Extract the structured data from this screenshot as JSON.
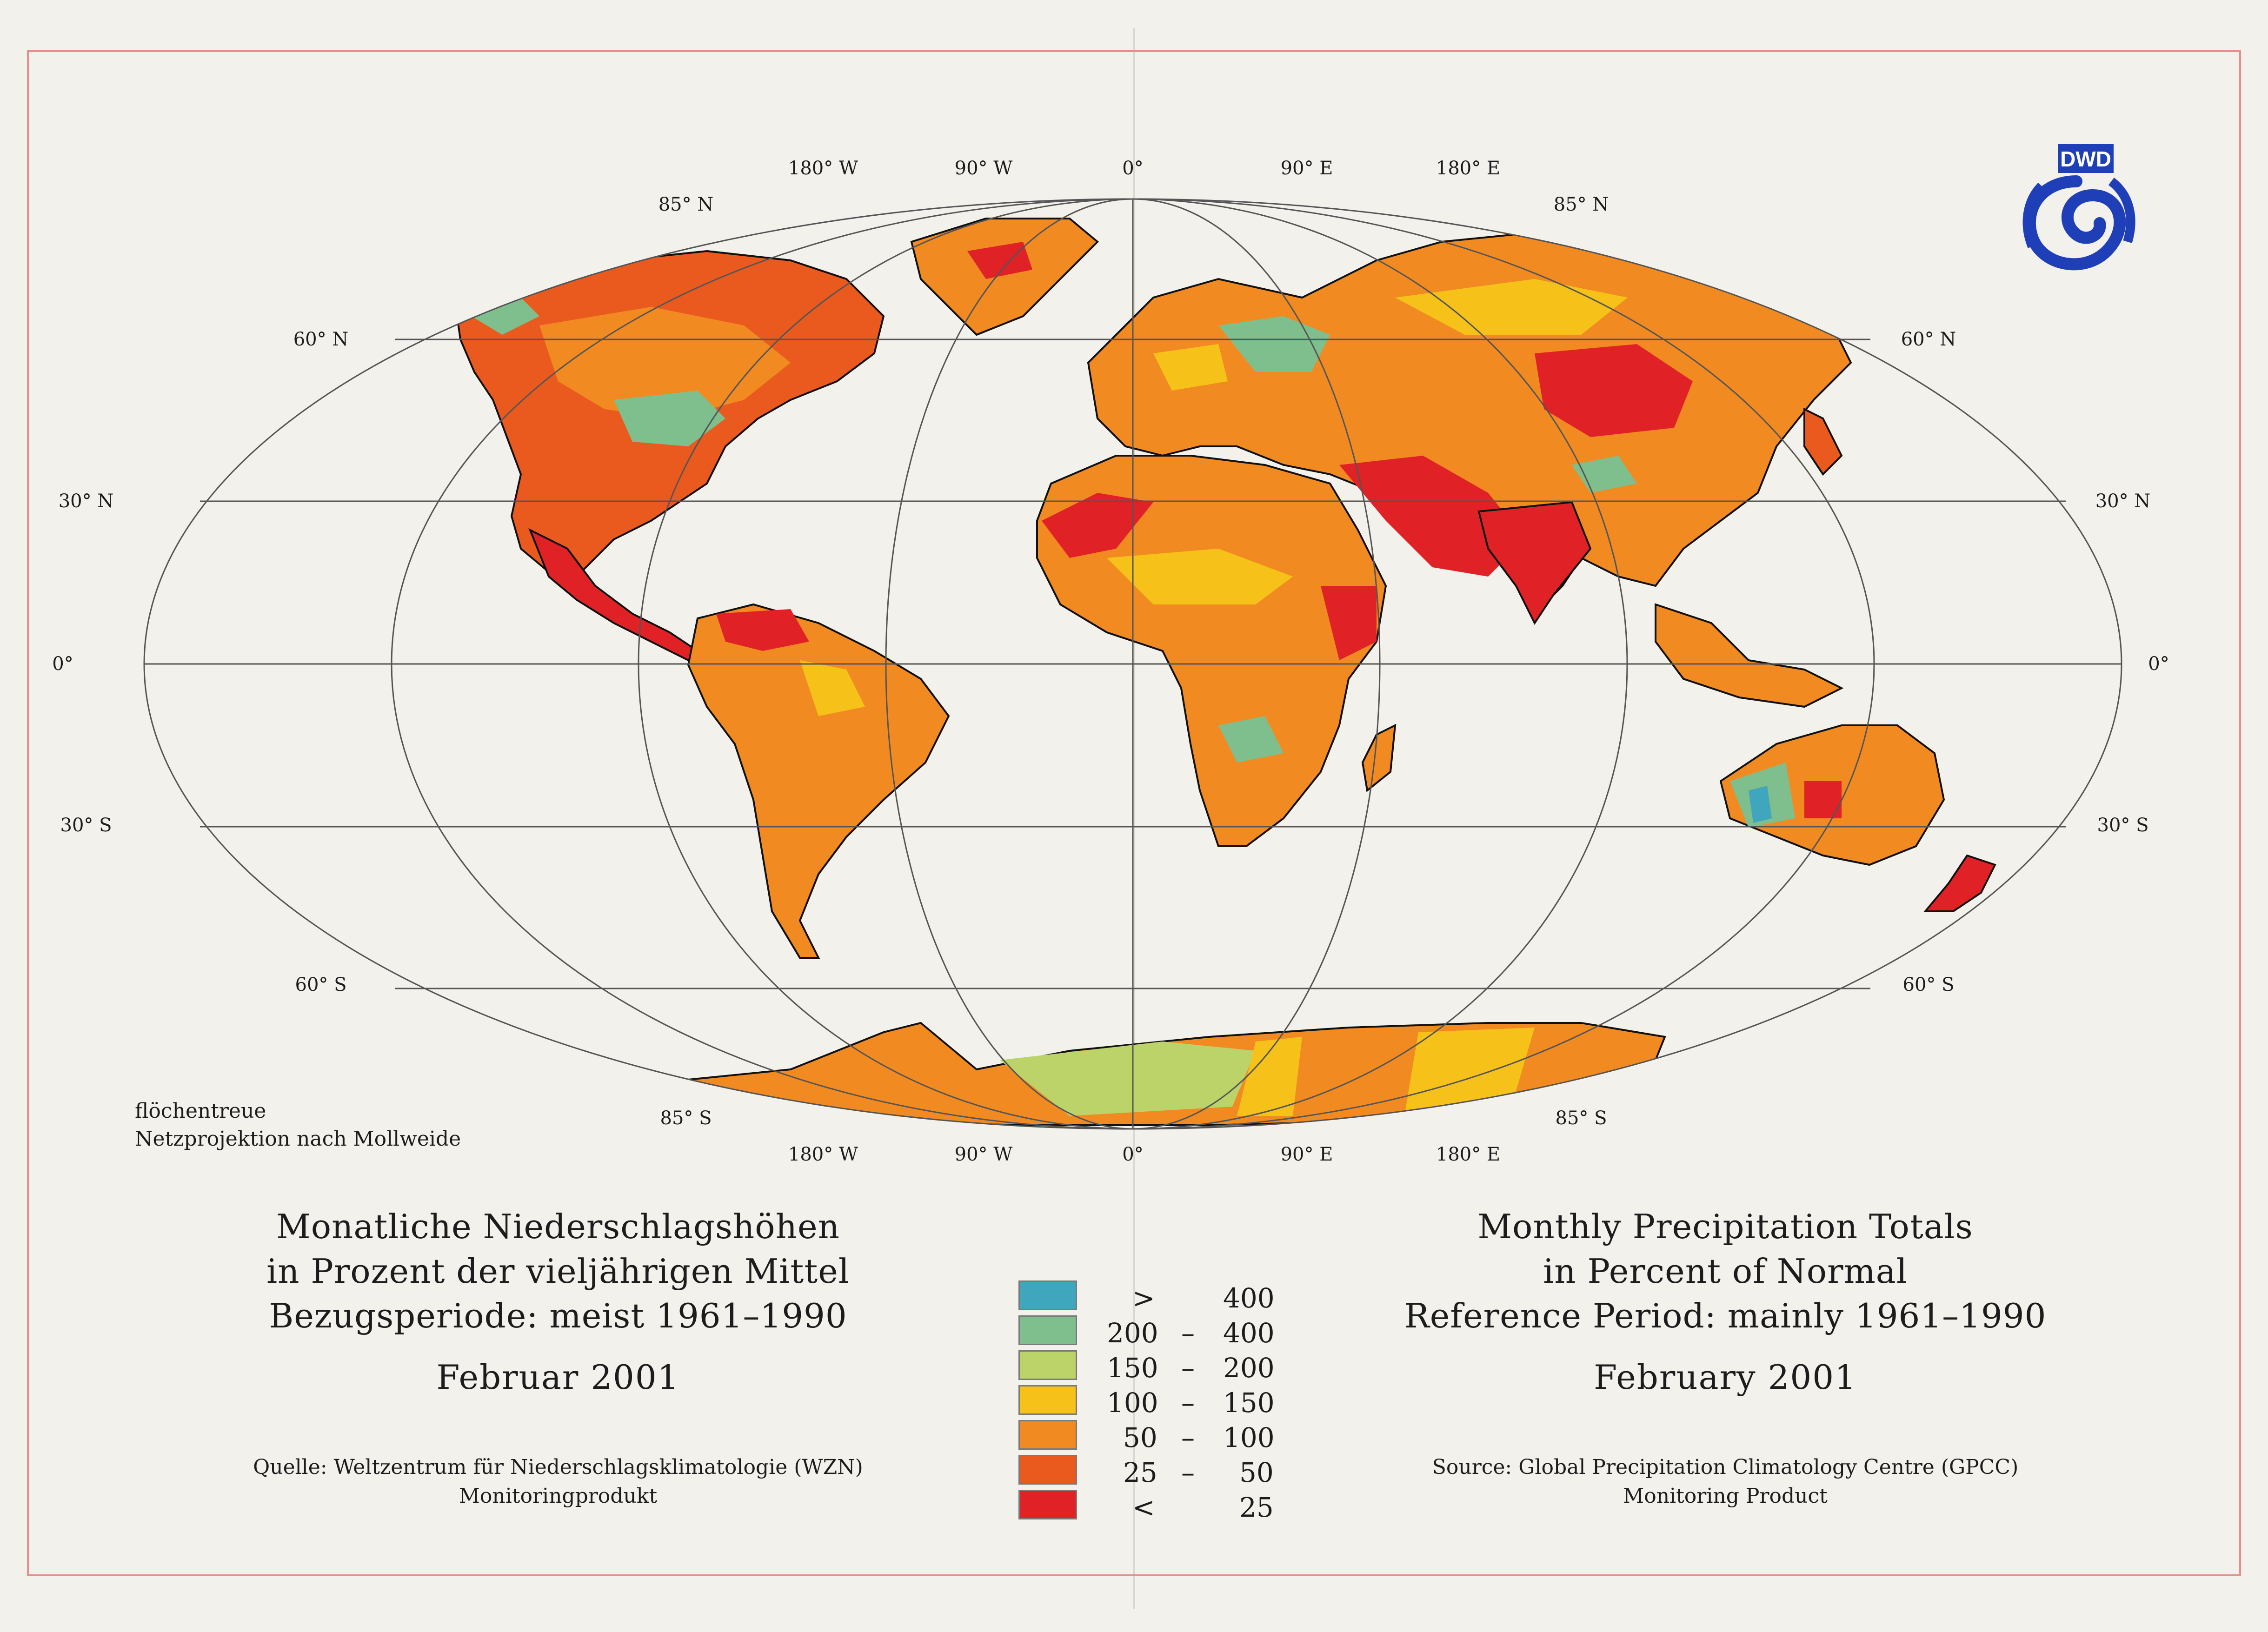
{
  "projection_note": [
    "flöchentreue",
    "Netzprojektion nach Mollweide"
  ],
  "logo_text": "DWD",
  "longitude_labels_top": [
    "180° W",
    "90° W",
    "0°",
    "90° E",
    "180° E"
  ],
  "longitude_labels_bottom": [
    "180° W",
    "90° W",
    "0°",
    "90° E",
    "180° E"
  ],
  "latitude_labels": {
    "n85": "85° N",
    "n60": "60° N",
    "n30": "30° N",
    "eq": "0°",
    "s30": "30° S",
    "s60": "60° S",
    "s85": "85° S"
  },
  "title_de": [
    "Monatliche Niederschlagshöhen",
    "in Prozent der vieljährigen Mittel",
    "Bezugsperiode: meist 1961–1990"
  ],
  "month_de": "Februar 2001",
  "source_de": [
    "Quelle: Weltzentrum für Niederschlagsklimatologie (WZN)",
    "Monitoringprodukt"
  ],
  "title_en": [
    "Monthly Precipitation Totals",
    "in Percent of Normal",
    "Reference Period: mainly 1961–1990"
  ],
  "month_en": "February 2001",
  "source_en": [
    "Source: Global Precipitation Climatology Centre (GPCC)",
    "Monitoring Product"
  ],
  "legend": [
    {
      "a": ">",
      "b": "",
      "c": "400",
      "color": "#3fa6bd"
    },
    {
      "a": "200",
      "b": "–",
      "c": "400",
      "color": "#7fbf8e"
    },
    {
      "a": "150",
      "b": "–",
      "c": "200",
      "color": "#bcd36a"
    },
    {
      "a": "100",
      "b": "–",
      "c": "150",
      "color": "#f6c21a"
    },
    {
      "a": "50",
      "b": "–",
      "c": "100",
      "color": "#f28a22"
    },
    {
      "a": "25",
      "b": "–",
      "c": "50",
      "color": "#ea5a1e"
    },
    {
      "a": "<",
      "b": "",
      "c": "25",
      "color": "#e02226"
    }
  ],
  "colors": {
    "land_main": "#f28a22",
    "dry": "#e02226",
    "wet": "#7fbf8e",
    "grid": "#555555",
    "frame": "#e58f8f"
  }
}
